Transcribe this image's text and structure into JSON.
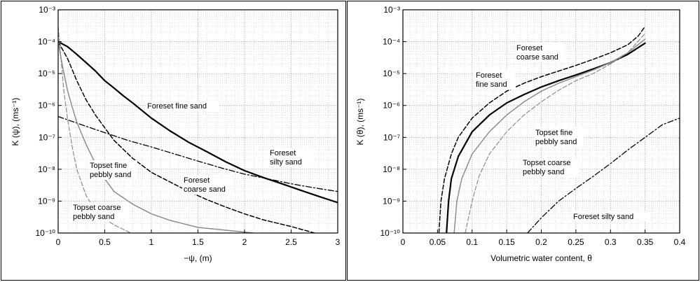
{
  "chart_data": [
    {
      "type": "line",
      "panel": "left",
      "xlabel": "−ψ, (m)",
      "ylabel": "K (ψ), (ms⁻¹)",
      "xlim": [
        0,
        3
      ],
      "ylim": [
        1e-10,
        0.001
      ],
      "yscale": "log",
      "grid": true,
      "x_ticks": [
        "0",
        "0.5",
        "1",
        "1.5",
        "2",
        "2.5",
        "3"
      ],
      "y_ticks": [
        "10⁻¹⁰",
        "10⁻⁹",
        "10⁻⁸",
        "10⁻⁷",
        "10⁻⁶",
        "10⁻⁵",
        "10⁻⁴",
        "10⁻³"
      ],
      "series": [
        {
          "name": "Foreset fine sand",
          "style": "solid",
          "color": "#000000",
          "width": 2.2,
          "label_lines": [
            "Foreset fine sand"
          ],
          "points": [
            [
              0,
              0.0001
            ],
            [
              0.1,
              7e-05
            ],
            [
              0.2,
              4e-05
            ],
            [
              0.3,
              2.2e-05
            ],
            [
              0.4,
              1.2e-05
            ],
            [
              0.5,
              6e-06
            ],
            [
              0.6,
              3.5e-06
            ],
            [
              0.7,
              2e-06
            ],
            [
              0.8,
              1.2e-06
            ],
            [
              1.0,
              4e-07
            ],
            [
              1.2,
              1.6e-07
            ],
            [
              1.4,
              7e-08
            ],
            [
              1.6,
              3.5e-08
            ],
            [
              1.8,
              1.7e-08
            ],
            [
              2.0,
              9e-09
            ],
            [
              2.2,
              5.5e-09
            ],
            [
              2.4,
              3.5e-09
            ],
            [
              2.6,
              2.2e-09
            ],
            [
              2.8,
              1.4e-09
            ],
            [
              3.0,
              9e-10
            ]
          ]
        },
        {
          "name": "Foreset coarse sand",
          "style": "dashed",
          "color": "#000000",
          "width": 1.5,
          "label_lines": [
            "Foreset",
            "coarse sand"
          ],
          "points": [
            [
              0,
              0.0001
            ],
            [
              0.1,
              3e-05
            ],
            [
              0.2,
              6e-06
            ],
            [
              0.3,
              1.5e-06
            ],
            [
              0.4,
              5e-07
            ],
            [
              0.5,
              2e-07
            ],
            [
              0.6,
              8e-08
            ],
            [
              0.8,
              2.2e-08
            ],
            [
              1.0,
              8e-09
            ],
            [
              1.2,
              4e-09
            ],
            [
              1.4,
              2e-09
            ],
            [
              1.6,
              1.1e-09
            ],
            [
              1.8,
              6.5e-10
            ],
            [
              2.0,
              4e-10
            ],
            [
              2.2,
              2.6e-10
            ],
            [
              2.5,
              1.6e-10
            ],
            [
              2.75,
              1e-10
            ]
          ]
        },
        {
          "name": "Foreset silty sand",
          "style": "dashdot",
          "color": "#000000",
          "width": 1.3,
          "label_lines": [
            "Foreset",
            "silty sand"
          ],
          "points": [
            [
              0,
              4.5e-07
            ],
            [
              0.25,
              2.5e-07
            ],
            [
              0.5,
              1.4e-07
            ],
            [
              0.75,
              8e-08
            ],
            [
              1.0,
              5e-08
            ],
            [
              1.25,
              3e-08
            ],
            [
              1.5,
              1.8e-08
            ],
            [
              1.75,
              1.1e-08
            ],
            [
              2.0,
              7e-09
            ],
            [
              2.25,
              5e-09
            ],
            [
              2.5,
              3.5e-09
            ],
            [
              2.75,
              2.6e-09
            ],
            [
              3.0,
              2e-09
            ]
          ]
        },
        {
          "name": "Topset fine pebbly sand",
          "style": "solid",
          "color": "#8c8c8c",
          "width": 1.5,
          "label_lines": [
            "Topset fine",
            "pebbly sand"
          ],
          "points": [
            [
              0,
              0.0001
            ],
            [
              0.05,
              1.5e-05
            ],
            [
              0.1,
              3e-06
            ],
            [
              0.15,
              9e-07
            ],
            [
              0.2,
              3e-07
            ],
            [
              0.3,
              6e-08
            ],
            [
              0.4,
              1.5e-08
            ],
            [
              0.5,
              5e-09
            ],
            [
              0.6,
              2e-09
            ],
            [
              0.8,
              8e-10
            ],
            [
              1.0,
              4e-10
            ],
            [
              1.2,
              2.5e-10
            ],
            [
              1.5,
              1.5e-10
            ],
            [
              2.1,
              1e-10
            ]
          ]
        },
        {
          "name": "Topset coarse pebbly sand",
          "style": "dashed",
          "color": "#8c8c8c",
          "width": 1.2,
          "label_lines": [
            "Topset coarse",
            "pebbly sand"
          ],
          "points": [
            [
              0,
              0.0003
            ],
            [
              0.03,
              3e-05
            ],
            [
              0.06,
              3e-06
            ],
            [
              0.1,
              4e-07
            ],
            [
              0.15,
              5e-08
            ],
            [
              0.2,
              1e-08
            ],
            [
              0.3,
              1.5e-09
            ],
            [
              0.4,
              5e-10
            ],
            [
              0.5,
              2.8e-10
            ],
            [
              0.6,
              1.8e-10
            ],
            [
              0.78,
              1e-10
            ]
          ]
        }
      ]
    },
    {
      "type": "line",
      "panel": "right",
      "xlabel": "Volumetric water content, θ",
      "ylabel": "K (θ), (ms⁻¹)",
      "xlim": [
        0,
        0.4
      ],
      "ylim": [
        1e-10,
        0.001
      ],
      "yscale": "log",
      "grid": true,
      "x_ticks": [
        "0",
        "0.05",
        "0.1",
        "0.15",
        "0.2",
        "0.25",
        "0.3",
        "0.35",
        "0.4"
      ],
      "y_ticks": [
        "10⁻¹⁰",
        "10⁻⁹",
        "10⁻⁸",
        "10⁻⁷",
        "10⁻⁶",
        "10⁻⁵",
        "10⁻⁴",
        "10⁻³"
      ],
      "series": [
        {
          "name": "Foreset coarse sand",
          "style": "dashed",
          "color": "#000000",
          "width": 1.5,
          "label_lines": [
            "Foreset",
            "coarse sand"
          ],
          "points": [
            [
              0.052,
              1e-10
            ],
            [
              0.055,
              1e-09
            ],
            [
              0.06,
              5e-09
            ],
            [
              0.07,
              3e-08
            ],
            [
              0.08,
              1e-07
            ],
            [
              0.1,
              4e-07
            ],
            [
              0.125,
              1.2e-06
            ],
            [
              0.15,
              2.8e-06
            ],
            [
              0.175,
              5e-06
            ],
            [
              0.2,
              8e-06
            ],
            [
              0.225,
              1.2e-05
            ],
            [
              0.25,
              1.8e-05
            ],
            [
              0.275,
              2.8e-05
            ],
            [
              0.3,
              4.5e-05
            ],
            [
              0.325,
              8e-05
            ],
            [
              0.34,
              0.00015
            ],
            [
              0.35,
              0.0003
            ]
          ]
        },
        {
          "name": "Foreset fine sand",
          "style": "solid",
          "color": "#000000",
          "width": 2.2,
          "label_lines": [
            "Foreset",
            "fine sand"
          ],
          "points": [
            [
              0.063,
              1e-10
            ],
            [
              0.066,
              1e-09
            ],
            [
              0.07,
              5e-09
            ],
            [
              0.08,
              2.5e-08
            ],
            [
              0.1,
              1.5e-07
            ],
            [
              0.125,
              5e-07
            ],
            [
              0.15,
              1.2e-06
            ],
            [
              0.175,
              2.2e-06
            ],
            [
              0.2,
              3.8e-06
            ],
            [
              0.225,
              6e-06
            ],
            [
              0.25,
              9e-06
            ],
            [
              0.275,
              1.4e-05
            ],
            [
              0.3,
              2.2e-05
            ],
            [
              0.325,
              4e-05
            ],
            [
              0.35,
              9e-05
            ]
          ]
        },
        {
          "name": "Topset fine pebbly sand",
          "style": "solid",
          "color": "#8c8c8c",
          "width": 1.5,
          "label_lines": [
            "Topset fine",
            "pebbly sand"
          ],
          "points": [
            [
              0.074,
              1e-10
            ],
            [
              0.078,
              1e-09
            ],
            [
              0.085,
              5e-09
            ],
            [
              0.1,
              3e-08
            ],
            [
              0.125,
              1.5e-07
            ],
            [
              0.15,
              5e-07
            ],
            [
              0.175,
              1.3e-06
            ],
            [
              0.2,
              2.8e-06
            ],
            [
              0.225,
              5e-06
            ],
            [
              0.25,
              8e-06
            ],
            [
              0.275,
              1.3e-05
            ],
            [
              0.3,
              2.2e-05
            ],
            [
              0.325,
              4.5e-05
            ],
            [
              0.35,
              0.00012
            ]
          ]
        },
        {
          "name": "Topset coarse pebbly sand",
          "style": "dashed",
          "color": "#8c8c8c",
          "width": 1.2,
          "label_lines": [
            "Topset coarse",
            "pebbly sand"
          ],
          "points": [
            [
              0.09,
              1e-10
            ],
            [
              0.1,
              1e-09
            ],
            [
              0.11,
              6e-09
            ],
            [
              0.125,
              3e-08
            ],
            [
              0.15,
              1.5e-07
            ],
            [
              0.175,
              5e-07
            ],
            [
              0.2,
              1.3e-06
            ],
            [
              0.225,
              3e-06
            ],
            [
              0.25,
              6e-06
            ],
            [
              0.275,
              1e-05
            ],
            [
              0.3,
              2e-05
            ],
            [
              0.325,
              4.5e-05
            ],
            [
              0.35,
              0.00018
            ]
          ]
        },
        {
          "name": "Foreset silty sand",
          "style": "dashdot",
          "color": "#000000",
          "width": 1.3,
          "label_lines": [
            "Foreset silty sand"
          ],
          "points": [
            [
              0.18,
              1e-10
            ],
            [
              0.2,
              3e-10
            ],
            [
              0.225,
              1e-09
            ],
            [
              0.25,
              2.5e-09
            ],
            [
              0.275,
              6e-09
            ],
            [
              0.3,
              1.5e-08
            ],
            [
              0.325,
              4e-08
            ],
            [
              0.35,
              1e-07
            ],
            [
              0.375,
              2.5e-07
            ],
            [
              0.4,
              4e-07
            ]
          ]
        }
      ]
    }
  ]
}
